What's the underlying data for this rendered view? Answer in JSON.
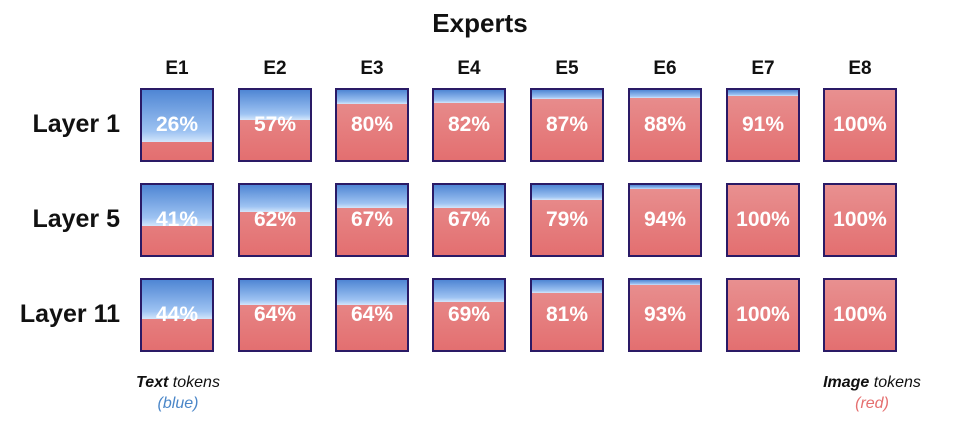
{
  "title": "Experts",
  "columns": [
    "E1",
    "E2",
    "E3",
    "E4",
    "E5",
    "E6",
    "E7",
    "E8"
  ],
  "rows": [
    {
      "label": "Layer 1",
      "values": [
        26,
        57,
        80,
        82,
        87,
        88,
        91,
        100
      ],
      "texts": [
        "26%",
        "57%",
        "80%",
        "82%",
        "87%",
        "88%",
        "91%",
        "100%"
      ]
    },
    {
      "label": "Layer 5",
      "values": [
        41,
        62,
        67,
        67,
        79,
        94,
        100,
        100
      ],
      "texts": [
        "41%",
        "62%",
        "67%",
        "67%",
        "79%",
        "94%",
        "100%",
        "100%"
      ]
    },
    {
      "label": "Layer 11",
      "values": [
        44,
        64,
        64,
        69,
        81,
        93,
        100,
        100
      ],
      "texts": [
        "44%",
        "64%",
        "64%",
        "69%",
        "81%",
        "93%",
        "100%",
        "100%"
      ]
    }
  ],
  "legend": {
    "left": {
      "bold": "Text",
      "rest": " tokens",
      "color_word": "(blue)",
      "color": "#4a86c8"
    },
    "right": {
      "bold": "Image",
      "rest": " tokens",
      "color_word": "(red)",
      "color": "#e56f6f"
    }
  }
}
